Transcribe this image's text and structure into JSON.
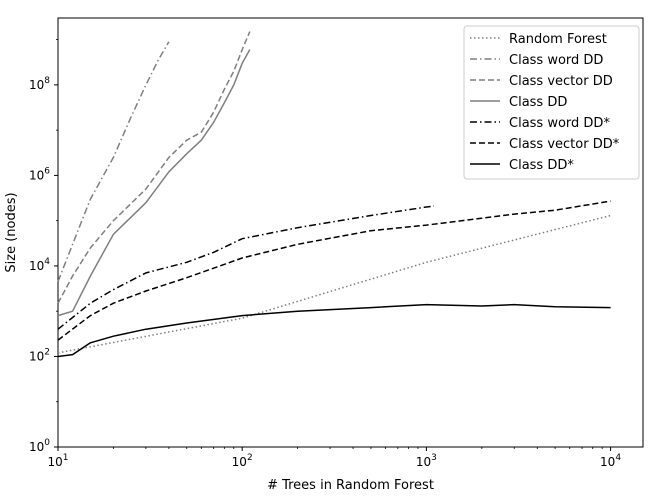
{
  "chart_data": {
    "type": "line",
    "title": "",
    "xlabel": "# Trees in Random Forest",
    "ylabel": "Size (nodes)",
    "xscale": "log",
    "yscale": "log",
    "xlim": [
      10,
      15000
    ],
    "ylim": [
      1,
      3000000000
    ],
    "x_ticks": [
      {
        "value": 10,
        "base": "10",
        "exp": "1"
      },
      {
        "value": 100,
        "base": "10",
        "exp": "2"
      },
      {
        "value": 1000,
        "base": "10",
        "exp": "3"
      },
      {
        "value": 10000,
        "base": "10",
        "exp": "4"
      }
    ],
    "y_ticks": [
      {
        "value": 1,
        "base": "10",
        "exp": "0"
      },
      {
        "value": 100,
        "base": "10",
        "exp": "2"
      },
      {
        "value": 10000,
        "base": "10",
        "exp": "4"
      },
      {
        "value": 1000000,
        "base": "10",
        "exp": "6"
      },
      {
        "value": 100000000,
        "base": "10",
        "exp": "8"
      }
    ],
    "grid": false,
    "legend_position": "top-right",
    "series": [
      {
        "name": "Random Forest",
        "color": "#7f7f7f",
        "dash": "dotted",
        "points": [
          [
            10,
            120
          ],
          [
            100,
            700
          ],
          [
            1000,
            12000
          ],
          [
            10000,
            130000
          ]
        ]
      },
      {
        "name": "Class word DD",
        "color": "#7f7f7f",
        "dash": "dashdot",
        "points": [
          [
            10,
            4500
          ],
          [
            12,
            30000
          ],
          [
            15,
            300000
          ],
          [
            20,
            2500000
          ],
          [
            25,
            20000000
          ],
          [
            30,
            100000000
          ],
          [
            35,
            350000000
          ],
          [
            40,
            900000000
          ]
        ]
      },
      {
        "name": "Class vector DD",
        "color": "#7f7f7f",
        "dash": "dashed",
        "points": [
          [
            10,
            1500
          ],
          [
            12,
            6000
          ],
          [
            15,
            25000
          ],
          [
            20,
            100000
          ],
          [
            30,
            500000
          ],
          [
            40,
            2500000
          ],
          [
            50,
            6000000
          ],
          [
            60,
            9000000
          ],
          [
            70,
            25000000
          ],
          [
            80,
            80000000
          ],
          [
            90,
            200000000
          ],
          [
            100,
            600000000
          ],
          [
            110,
            1500000000
          ]
        ]
      },
      {
        "name": "Class DD",
        "color": "#7f7f7f",
        "dash": "solid",
        "points": [
          [
            10,
            800
          ],
          [
            12,
            1000
          ],
          [
            15,
            6000
          ],
          [
            20,
            50000
          ],
          [
            30,
            250000
          ],
          [
            40,
            1200000
          ],
          [
            50,
            3000000
          ],
          [
            60,
            6000000
          ],
          [
            70,
            15000000
          ],
          [
            80,
            40000000
          ],
          [
            90,
            100000000
          ],
          [
            100,
            300000000
          ],
          [
            110,
            600000000
          ]
        ]
      },
      {
        "name": "Class word DD*",
        "color": "#000000",
        "dash": "dashdot",
        "points": [
          [
            10,
            400
          ],
          [
            15,
            1500
          ],
          [
            20,
            3000
          ],
          [
            30,
            7000
          ],
          [
            50,
            12000
          ],
          [
            70,
            20000
          ],
          [
            100,
            40000
          ],
          [
            200,
            70000
          ],
          [
            500,
            130000
          ],
          [
            1000,
            200000
          ],
          [
            1100,
            210000
          ]
        ]
      },
      {
        "name": "Class vector DD*",
        "color": "#000000",
        "dash": "dashed",
        "points": [
          [
            10,
            230
          ],
          [
            15,
            800
          ],
          [
            20,
            1500
          ],
          [
            30,
            2800
          ],
          [
            50,
            5500
          ],
          [
            100,
            15000
          ],
          [
            200,
            30000
          ],
          [
            500,
            60000
          ],
          [
            1000,
            80000
          ],
          [
            3000,
            140000
          ],
          [
            5000,
            170000
          ],
          [
            10000,
            270000
          ]
        ]
      },
      {
        "name": "Class DD*",
        "color": "#000000",
        "dash": "solid",
        "points": [
          [
            10,
            100
          ],
          [
            12,
            110
          ],
          [
            15,
            200
          ],
          [
            20,
            280
          ],
          [
            30,
            400
          ],
          [
            50,
            550
          ],
          [
            100,
            800
          ],
          [
            200,
            1000
          ],
          [
            500,
            1200
          ],
          [
            1000,
            1400
          ],
          [
            2000,
            1300
          ],
          [
            3000,
            1400
          ],
          [
            5000,
            1250
          ],
          [
            10000,
            1200
          ]
        ]
      }
    ]
  }
}
